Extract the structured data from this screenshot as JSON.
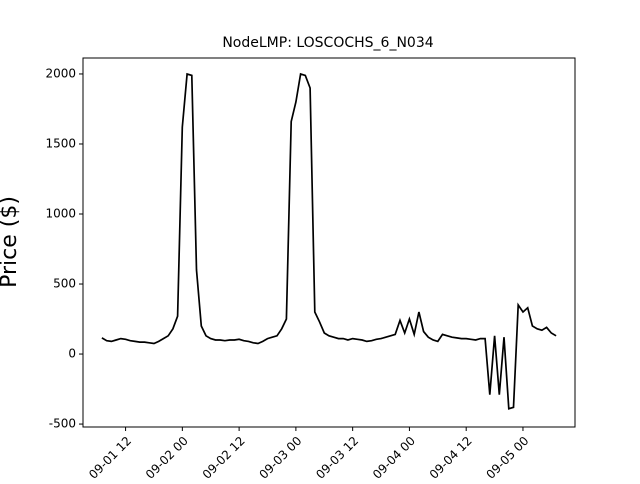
{
  "chart_data": {
    "type": "line",
    "title": "NodeLMP: LOSCOCHS_6_N034",
    "y_label": "Price ($)",
    "x": [
      "09-01 07",
      "09-01 08",
      "09-01 09",
      "09-01 10",
      "09-01 11",
      "09-01 12",
      "09-01 13",
      "09-01 14",
      "09-01 15",
      "09-01 16",
      "09-01 17",
      "09-01 18",
      "09-01 19",
      "09-01 20",
      "09-01 21",
      "09-01 22",
      "09-01 23",
      "09-02 00",
      "09-02 01",
      "09-02 02",
      "09-02 03",
      "09-02 04",
      "09-02 05",
      "09-02 06",
      "09-02 07",
      "09-02 08",
      "09-02 09",
      "09-02 10",
      "09-02 11",
      "09-02 12",
      "09-02 13",
      "09-02 14",
      "09-02 15",
      "09-02 16",
      "09-02 17",
      "09-02 18",
      "09-02 19",
      "09-02 20",
      "09-02 21",
      "09-02 22",
      "09-02 23",
      "09-03 00",
      "09-03 01",
      "09-03 02",
      "09-03 03",
      "09-03 04",
      "09-03 05",
      "09-03 06",
      "09-03 07",
      "09-03 08",
      "09-03 09",
      "09-03 10",
      "09-03 11",
      "09-03 12",
      "09-03 13",
      "09-03 14",
      "09-03 15",
      "09-03 16",
      "09-03 17",
      "09-03 18",
      "09-03 19",
      "09-03 20",
      "09-03 21",
      "09-03 22",
      "09-03 23",
      "09-04 00",
      "09-04 01",
      "09-04 02",
      "09-04 03",
      "09-04 04",
      "09-04 05",
      "09-04 06",
      "09-04 07",
      "09-04 08",
      "09-04 09",
      "09-04 10",
      "09-04 11",
      "09-04 12",
      "09-04 13",
      "09-04 14",
      "09-04 15",
      "09-04 16",
      "09-04 17",
      "09-04 18",
      "09-04 19",
      "09-04 20",
      "09-04 21",
      "09-04 22",
      "09-04 23",
      "09-05 00",
      "09-05 01",
      "09-05 02",
      "09-05 03",
      "09-05 04",
      "09-05 05",
      "09-05 06",
      "09-05 07"
    ],
    "series": [
      {
        "name": "LOSCOCHS_6_N034",
        "color": "#000000",
        "values": [
          115,
          95,
          90,
          100,
          110,
          105,
          95,
          90,
          85,
          85,
          80,
          75,
          90,
          110,
          130,
          180,
          270,
          1620,
          2000,
          1990,
          600,
          200,
          130,
          110,
          100,
          100,
          95,
          100,
          100,
          105,
          95,
          90,
          80,
          75,
          90,
          110,
          120,
          130,
          180,
          250,
          1660,
          1800,
          2000,
          1990,
          1900,
          300,
          230,
          150,
          130,
          120,
          110,
          110,
          100,
          110,
          105,
          100,
          90,
          95,
          105,
          110,
          120,
          130,
          140,
          240,
          150,
          250,
          140,
          300,
          160,
          120,
          100,
          90,
          140,
          130,
          120,
          115,
          110,
          110,
          105,
          100,
          110,
          110,
          -290,
          130,
          -290,
          120,
          -390,
          -380,
          350,
          300,
          330,
          200,
          180,
          170,
          190,
          150,
          130
        ]
      }
    ],
    "xlim": [
      "09-01 03",
      "09-05 11"
    ],
    "xticks": [
      "09-01 12",
      "09-02 00",
      "09-02 12",
      "09-03 00",
      "09-03 12",
      "09-04 00",
      "09-04 12",
      "09-05 00"
    ],
    "ylim": [
      -521,
      2114
    ],
    "yticks": [
      -500,
      0,
      500,
      1000,
      1500,
      2000
    ]
  }
}
